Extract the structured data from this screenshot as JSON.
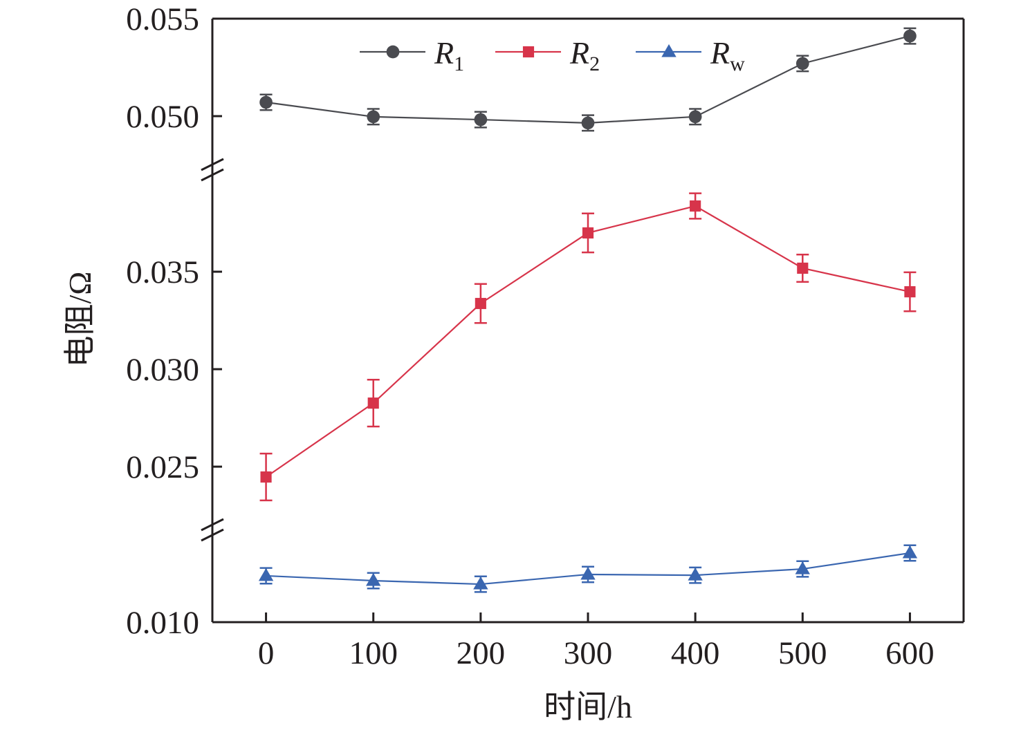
{
  "chart_data": {
    "type": "line",
    "title": "",
    "xlabel": "时间/h",
    "ylabel": "电阻/Ω",
    "x": [
      0,
      100,
      200,
      300,
      400,
      500,
      600
    ],
    "x_tick_labels": [
      "0",
      "100",
      "200",
      "300",
      "400",
      "500",
      "600"
    ],
    "xlim": [
      -50,
      650
    ],
    "y_axis_broken": true,
    "y_segments": [
      {
        "name": "top",
        "range": [
          0.04695,
          0.055
        ],
        "ticks": [
          0.05,
          0.055
        ]
      },
      {
        "name": "middle",
        "range": [
          0.02174,
          0.03993
        ],
        "ticks": [
          0.025,
          0.03,
          0.035
        ]
      },
      {
        "name": "bottom",
        "range": [
          0.01,
          0.01472
        ],
        "ticks": [
          0.01
        ]
      }
    ],
    "y_tick_labels": [
      {
        "value": 0.055,
        "label": "0.055"
      },
      {
        "value": 0.05,
        "label": "0.050"
      },
      {
        "value": 0.035,
        "label": "0.035"
      },
      {
        "value": 0.03,
        "label": "0.030"
      },
      {
        "value": 0.025,
        "label": "0.025"
      },
      {
        "value": 0.01,
        "label": "0.010"
      }
    ],
    "grid": false,
    "legend_position": "top",
    "series": [
      {
        "name": "R1",
        "legend_main": "R",
        "legend_sub": "1",
        "color": "#4a4b50",
        "marker": "circle",
        "values": [
          0.05071,
          0.04997,
          0.04982,
          0.04965,
          0.04997,
          0.0527,
          0.05411
        ],
        "errors": [
          0.0004,
          0.0004,
          0.0004,
          0.0004,
          0.0004,
          0.0004,
          0.0004
        ]
      },
      {
        "name": "R2",
        "legend_main": "R",
        "legend_sub": "2",
        "color": "#d7344a",
        "marker": "square",
        "values": [
          0.02447,
          0.02826,
          0.03337,
          0.03699,
          0.03837,
          0.03518,
          0.03397
        ],
        "errors": [
          0.0012,
          0.0012,
          0.001,
          0.001,
          0.00065,
          0.0007,
          0.001
        ]
      },
      {
        "name": "Rw",
        "legend_main": "R",
        "legend_sub": "w",
        "color": "#3a66b0",
        "marker": "triangle",
        "values": [
          0.01238,
          0.01213,
          0.01195,
          0.01245,
          0.01241,
          0.01273,
          0.01355
        ],
        "errors": [
          0.0004,
          0.0004,
          0.0004,
          0.0004,
          0.0004,
          0.0004,
          0.0004
        ]
      }
    ]
  }
}
